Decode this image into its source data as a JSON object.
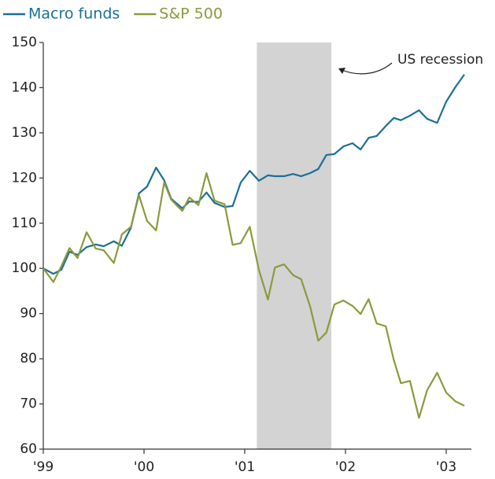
{
  "chart_data": {
    "type": "line",
    "x": [
      1999.0,
      1999.1,
      1999.18,
      1999.26,
      1999.34,
      1999.43,
      1999.52,
      1999.6,
      1999.7,
      1999.78,
      1999.87,
      1999.95,
      2000.03,
      2000.12,
      2000.2,
      2000.27,
      2000.38,
      2000.45,
      2000.54,
      2000.62,
      2000.7,
      2000.8,
      2000.88,
      2000.96,
      2001.05,
      2001.14,
      2001.23,
      2001.3,
      2001.39,
      2001.48,
      2001.56,
      2001.65,
      2001.73,
      2001.81,
      2001.89,
      2001.98,
      2002.07,
      2002.15,
      2002.23,
      2002.31,
      2002.4,
      2002.48,
      2002.55,
      2002.64,
      2002.73,
      2002.81,
      2002.91,
      2003.0,
      2003.09,
      2003.18
    ],
    "series": [
      {
        "name": "Macro funds",
        "color": "#1b6f96",
        "values": [
          100,
          98.8,
          99.7,
          103.7,
          103,
          104.7,
          105.3,
          104.9,
          106,
          105,
          109,
          116.6,
          118.1,
          122.3,
          119.5,
          115.4,
          113.3,
          114.8,
          114.7,
          116.8,
          114.5,
          113.6,
          113.8,
          119,
          121.6,
          119.4,
          120.6,
          120.4,
          120.4,
          120.9,
          120.4,
          121.1,
          122,
          125.1,
          125.3,
          127,
          127.7,
          126.3,
          128.9,
          129.3,
          131.5,
          133.3,
          132.8,
          133.8,
          135,
          133.1,
          132.2,
          136.9,
          140.1,
          142.9
        ]
      },
      {
        "name": "S&P 500",
        "color": "#8b9a3b",
        "values": [
          100,
          97,
          100.5,
          104.5,
          102.3,
          108,
          104.4,
          104,
          101.2,
          107.5,
          109.2,
          116.2,
          110.5,
          108.4,
          119,
          115.2,
          112.7,
          115.7,
          114,
          121.1,
          115,
          114.2,
          105.2,
          105.6,
          109.2,
          99.7,
          93.1,
          100.2,
          100.9,
          98.5,
          97.6,
          91.5,
          84,
          85.8,
          92,
          92.9,
          91.7,
          89.9,
          93.2,
          87.8,
          87.2,
          79.7,
          74.6,
          75.1,
          66.9,
          73,
          76.9,
          72.5,
          70.6,
          69.6
        ]
      }
    ],
    "shaded_region": {
      "x": [
        2001.12,
        2001.86
      ],
      "color": "#d3d3d3"
    },
    "annotation": "US recession",
    "xlim": [
      1999,
      2003.25
    ],
    "xticks": [
      {
        "value": 1999,
        "label": "'99"
      },
      {
        "value": 2000,
        "label": "'00"
      },
      {
        "value": 2001,
        "label": "'01"
      },
      {
        "value": 2002,
        "label": "'02"
      },
      {
        "value": 2003,
        "label": "'03"
      }
    ],
    "ylim": [
      60,
      150
    ],
    "yticks": [
      60,
      70,
      80,
      90,
      100,
      110,
      120,
      130,
      140,
      150
    ]
  }
}
